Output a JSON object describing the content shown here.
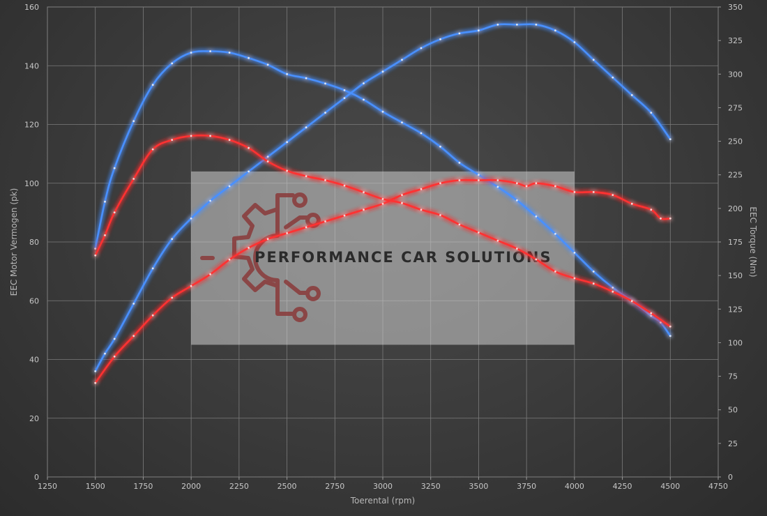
{
  "chart_data": {
    "type": "line",
    "title": "",
    "xlabel": "Toerental (rpm)",
    "ylabel": "EEC Motor Vermogen (pk)",
    "y2label": "EEC Torque (Nm)",
    "xlim": [
      1250,
      4750
    ],
    "ylim": [
      0,
      160
    ],
    "y2lim": [
      0,
      350
    ],
    "xticks": [
      1250,
      1500,
      1750,
      2000,
      2250,
      2500,
      2750,
      3000,
      3250,
      3500,
      3750,
      4000,
      4250,
      4500,
      4750
    ],
    "yticks": [
      0,
      20,
      40,
      60,
      80,
      100,
      120,
      140,
      160
    ],
    "y2ticks": [
      0,
      25,
      50,
      75,
      100,
      125,
      150,
      175,
      200,
      225,
      250,
      275,
      300,
      325,
      350
    ],
    "grid": true,
    "legend": "none",
    "colors": {
      "tuned": "#4a90ff",
      "stock": "#ff3030"
    },
    "series": [
      {
        "axis": "left",
        "color": "tuned",
        "x": [
          1500,
          1550,
          1600,
          1700,
          1800,
          1900,
          2000,
          2100,
          2200,
          2300,
          2400,
          2500,
          2600,
          2700,
          2800,
          2900,
          3000,
          3100,
          3200,
          3300,
          3400,
          3500,
          3600,
          3700,
          3800,
          3900,
          4000,
          4100,
          4200,
          4300,
          4400,
          4500
        ],
        "values": [
          36,
          42,
          47,
          59,
          71,
          81,
          88,
          94,
          99,
          104,
          109,
          114,
          119,
          124,
          129,
          134,
          138,
          142,
          146,
          149,
          151,
          152,
          154,
          154,
          154,
          152,
          148,
          142,
          136,
          130,
          124,
          115
        ]
      },
      {
        "axis": "right",
        "color": "tuned",
        "x": [
          1500,
          1550,
          1600,
          1700,
          1800,
          1900,
          2000,
          2100,
          2200,
          2300,
          2400,
          2500,
          2600,
          2700,
          2800,
          2900,
          3000,
          3100,
          3200,
          3300,
          3400,
          3500,
          3600,
          3700,
          3800,
          3900,
          4000,
          4100,
          4200,
          4300,
          4400,
          4450,
          4500
        ],
        "values": [
          170,
          205,
          230,
          265,
          292,
          308,
          316,
          317,
          316,
          312,
          307,
          300,
          297,
          293,
          288,
          281,
          272,
          264,
          256,
          246,
          234,
          225,
          216,
          206,
          194,
          181,
          167,
          153,
          141,
          131,
          120,
          115,
          105
        ]
      },
      {
        "axis": "left",
        "color": "stock",
        "x": [
          1500,
          1600,
          1700,
          1800,
          1900,
          2000,
          2100,
          2200,
          2300,
          2400,
          2500,
          2600,
          2700,
          2800,
          2900,
          3000,
          3100,
          3200,
          3300,
          3400,
          3500,
          3600,
          3700,
          3750,
          3800,
          3900,
          4000,
          4100,
          4200,
          4300,
          4400,
          4450,
          4500
        ],
        "values": [
          32,
          41,
          48,
          55,
          61,
          65,
          69,
          74,
          78,
          81,
          83,
          85,
          87,
          89,
          91,
          93,
          96,
          98,
          100,
          101,
          101,
          101,
          100,
          99,
          100,
          99,
          97,
          97,
          96,
          93,
          91,
          88,
          88
        ]
      },
      {
        "axis": "right",
        "color": "stock",
        "x": [
          1500,
          1550,
          1600,
          1700,
          1800,
          1900,
          2000,
          2100,
          2200,
          2300,
          2400,
          2500,
          2600,
          2700,
          2800,
          2900,
          3000,
          3100,
          3200,
          3300,
          3400,
          3500,
          3600,
          3700,
          3800,
          3900,
          4000,
          4100,
          4200,
          4300,
          4400,
          4500
        ],
        "values": [
          165,
          180,
          197,
          222,
          244,
          251,
          254,
          254,
          251,
          245,
          235,
          228,
          224,
          221,
          217,
          212,
          207,
          204,
          199,
          195,
          188,
          182,
          176,
          170,
          162,
          153,
          148,
          144,
          138,
          131,
          122,
          112
        ]
      }
    ],
    "watermark": {
      "text": "PERFORMANCE CAR SOLUTIONS",
      "logo_icon": "gear-circuit-logo",
      "x_range": [
        2000,
        4000
      ],
      "y_range": [
        45,
        104
      ]
    }
  }
}
